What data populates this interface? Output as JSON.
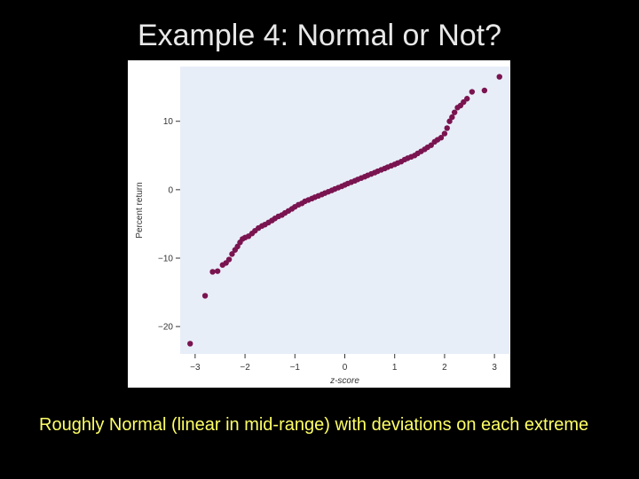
{
  "slide": {
    "title": "Example 4:  Normal or Not?",
    "caption": "Roughly Normal (linear in mid-range) with deviations on each extreme"
  },
  "colors": {
    "background": "#000000",
    "title": "#e8e8e8",
    "caption": "#ffff66",
    "plot_background": "#e8eef8",
    "point": "#7a1450",
    "axis": "#333333"
  },
  "chart_data": {
    "type": "scatter",
    "title": "",
    "xlabel": "z-score",
    "ylabel": "Percent return",
    "xlim": [
      -3.3,
      3.3
    ],
    "ylim": [
      -24,
      18
    ],
    "xticks": [
      -3,
      -2,
      -1,
      0,
      1,
      2,
      3
    ],
    "yticks": [
      -20,
      -10,
      0,
      10
    ],
    "xtick_labels": [
      "−3",
      "−2",
      "−1",
      "0",
      "1",
      "2",
      "3"
    ],
    "ytick_labels": [
      "−20",
      "−10",
      "0",
      "10"
    ],
    "grid": false,
    "series": [
      {
        "points": [
          [
            -3.1,
            -22.5
          ],
          [
            -2.8,
            -15.5
          ],
          [
            -2.65,
            -12.0
          ],
          [
            -2.55,
            -11.9
          ],
          [
            -2.45,
            -11.0
          ],
          [
            -2.38,
            -10.7
          ],
          [
            -2.32,
            -10.2
          ],
          [
            -2.26,
            -9.4
          ],
          [
            -2.2,
            -8.8
          ],
          [
            -2.15,
            -8.3
          ],
          [
            -2.1,
            -7.7
          ],
          [
            -2.05,
            -7.2
          ],
          [
            -2.0,
            -7.0
          ],
          [
            -1.93,
            -6.8
          ],
          [
            -1.86,
            -6.4
          ],
          [
            -1.8,
            -6.0
          ],
          [
            -1.73,
            -5.6
          ],
          [
            -1.66,
            -5.3
          ],
          [
            -1.6,
            -5.1
          ],
          [
            -1.53,
            -4.8
          ],
          [
            -1.46,
            -4.5
          ],
          [
            -1.4,
            -4.2
          ],
          [
            -1.33,
            -3.9
          ],
          [
            -1.26,
            -3.7
          ],
          [
            -1.2,
            -3.4
          ],
          [
            -1.13,
            -3.1
          ],
          [
            -1.06,
            -2.8
          ],
          [
            -1.0,
            -2.5
          ],
          [
            -0.93,
            -2.2
          ],
          [
            -0.86,
            -2.0
          ],
          [
            -0.8,
            -1.7
          ],
          [
            -0.73,
            -1.5
          ],
          [
            -0.66,
            -1.3
          ],
          [
            -0.6,
            -1.1
          ],
          [
            -0.53,
            -0.9
          ],
          [
            -0.46,
            -0.7
          ],
          [
            -0.4,
            -0.5
          ],
          [
            -0.33,
            -0.3
          ],
          [
            -0.26,
            -0.1
          ],
          [
            -0.2,
            0.1
          ],
          [
            -0.13,
            0.3
          ],
          [
            -0.06,
            0.5
          ],
          [
            0.0,
            0.7
          ],
          [
            0.06,
            0.9
          ],
          [
            0.13,
            1.1
          ],
          [
            0.2,
            1.3
          ],
          [
            0.26,
            1.5
          ],
          [
            0.33,
            1.7
          ],
          [
            0.4,
            1.9
          ],
          [
            0.46,
            2.1
          ],
          [
            0.53,
            2.3
          ],
          [
            0.6,
            2.5
          ],
          [
            0.66,
            2.7
          ],
          [
            0.73,
            2.9
          ],
          [
            0.8,
            3.1
          ],
          [
            0.86,
            3.3
          ],
          [
            0.93,
            3.5
          ],
          [
            1.0,
            3.7
          ],
          [
            1.06,
            3.9
          ],
          [
            1.13,
            4.1
          ],
          [
            1.2,
            4.4
          ],
          [
            1.26,
            4.6
          ],
          [
            1.33,
            4.8
          ],
          [
            1.4,
            5.0
          ],
          [
            1.46,
            5.3
          ],
          [
            1.53,
            5.6
          ],
          [
            1.6,
            5.9
          ],
          [
            1.66,
            6.2
          ],
          [
            1.73,
            6.5
          ],
          [
            1.8,
            7.0
          ],
          [
            1.86,
            7.3
          ],
          [
            1.93,
            7.6
          ],
          [
            2.0,
            8.2
          ],
          [
            2.05,
            9.0
          ],
          [
            2.1,
            10.0
          ],
          [
            2.15,
            10.6
          ],
          [
            2.2,
            11.3
          ],
          [
            2.26,
            12.0
          ],
          [
            2.32,
            12.3
          ],
          [
            2.38,
            12.8
          ],
          [
            2.45,
            13.3
          ],
          [
            2.55,
            14.3
          ],
          [
            2.8,
            14.5
          ],
          [
            3.1,
            16.5
          ]
        ]
      }
    ]
  }
}
